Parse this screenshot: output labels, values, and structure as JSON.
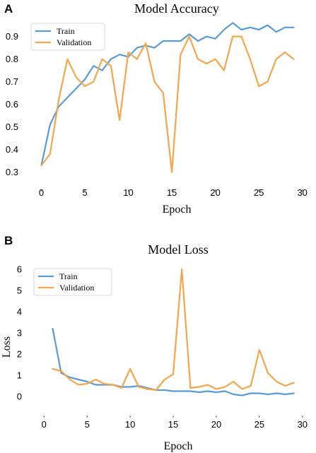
{
  "figure": {
    "panel_a_letter": "A",
    "panel_b_letter": "B"
  },
  "colors": {
    "train": "#5b9bd5",
    "validation": "#f5a54c",
    "axis": "#555555"
  },
  "chart_data": [
    {
      "type": "line",
      "title": "Model Accuracy",
      "xlabel": "Epoch",
      "ylabel": "",
      "xlim": [
        -1.5,
        31
      ],
      "ylim": [
        0.28,
        0.98
      ],
      "xticks": [
        0,
        5,
        10,
        15,
        20,
        25,
        30
      ],
      "yticks": [
        0.3,
        0.4,
        0.5,
        0.6,
        0.7,
        0.8,
        0.9
      ],
      "grid": false,
      "legend_position": "top-left",
      "series": [
        {
          "name": "Train",
          "color": "#5b9bd5",
          "x": [
            0,
            1,
            2,
            3,
            4,
            5,
            6,
            7,
            8,
            9,
            10,
            11,
            12,
            13,
            14,
            15,
            16,
            17,
            18,
            19,
            20,
            21,
            22,
            23,
            24,
            25,
            26,
            27,
            28,
            29
          ],
          "values": [
            0.33,
            0.51,
            0.59,
            0.63,
            0.67,
            0.71,
            0.77,
            0.75,
            0.8,
            0.82,
            0.81,
            0.85,
            0.86,
            0.85,
            0.88,
            0.88,
            0.88,
            0.91,
            0.88,
            0.9,
            0.89,
            0.93,
            0.96,
            0.93,
            0.94,
            0.93,
            0.95,
            0.92,
            0.94,
            0.94
          ]
        },
        {
          "name": "Validation",
          "color": "#f5a54c",
          "x": [
            0,
            1,
            2,
            3,
            4,
            5,
            6,
            7,
            8,
            9,
            10,
            11,
            12,
            13,
            14,
            15,
            16,
            17,
            18,
            19,
            20,
            21,
            22,
            23,
            24,
            25,
            26,
            27,
            28,
            29
          ],
          "values": [
            0.33,
            0.38,
            0.62,
            0.8,
            0.72,
            0.68,
            0.7,
            0.8,
            0.77,
            0.53,
            0.83,
            0.8,
            0.87,
            0.7,
            0.65,
            0.3,
            0.82,
            0.9,
            0.8,
            0.78,
            0.8,
            0.75,
            0.9,
            0.9,
            0.8,
            0.68,
            0.7,
            0.8,
            0.83,
            0.8
          ]
        }
      ]
    },
    {
      "type": "line",
      "title": "Model Loss",
      "xlabel": "Epoch",
      "ylabel": "Loss",
      "xlim": [
        -1.5,
        31
      ],
      "ylim": [
        -0.3,
        6.3
      ],
      "xticks": [
        0,
        5,
        10,
        15,
        20,
        25,
        30
      ],
      "yticks": [
        0,
        1,
        2,
        3,
        4,
        5,
        6
      ],
      "grid": false,
      "legend_position": "top-left",
      "series": [
        {
          "name": "Train",
          "color": "#5b9bd5",
          "x": [
            1,
            2,
            3,
            4,
            5,
            6,
            7,
            8,
            9,
            10,
            11,
            12,
            13,
            14,
            15,
            16,
            17,
            18,
            19,
            20,
            21,
            22,
            23,
            24,
            25,
            26,
            27,
            28,
            29
          ],
          "values": [
            3.2,
            1.1,
            0.9,
            0.8,
            0.7,
            0.55,
            0.55,
            0.55,
            0.45,
            0.45,
            0.5,
            0.4,
            0.3,
            0.3,
            0.25,
            0.25,
            0.25,
            0.2,
            0.25,
            0.2,
            0.25,
            0.1,
            0.05,
            0.15,
            0.15,
            0.1,
            0.15,
            0.1,
            0.15
          ]
        },
        {
          "name": "Validation",
          "color": "#f5a54c",
          "x": [
            1,
            2,
            3,
            4,
            5,
            6,
            7,
            8,
            9,
            10,
            11,
            12,
            13,
            14,
            15,
            16,
            17,
            18,
            19,
            20,
            21,
            22,
            23,
            24,
            25,
            26,
            27,
            28,
            29
          ],
          "values": [
            1.3,
            1.2,
            0.8,
            0.55,
            0.6,
            0.8,
            0.6,
            0.55,
            0.4,
            1.3,
            0.45,
            0.35,
            0.3,
            0.8,
            1.05,
            6.0,
            0.4,
            0.45,
            0.55,
            0.35,
            0.45,
            0.7,
            0.35,
            0.5,
            2.2,
            1.1,
            0.7,
            0.5,
            0.65
          ]
        }
      ]
    }
  ]
}
